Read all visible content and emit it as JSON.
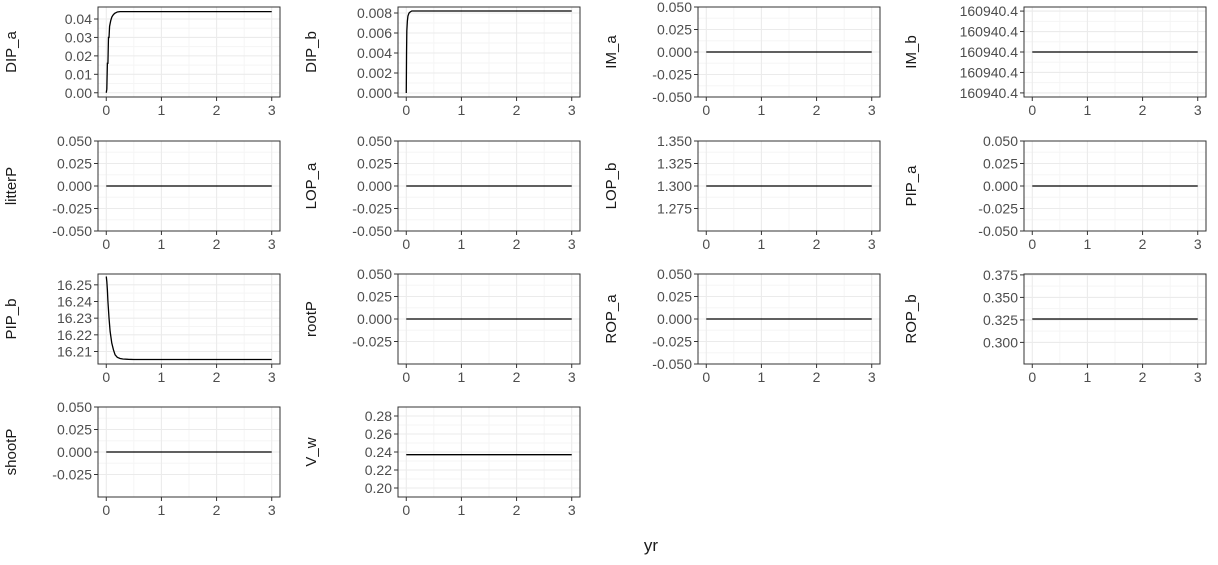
{
  "colors": {
    "background": "#ffffff",
    "panel_border": "#333333",
    "grid_major": "#ebebeb",
    "grid_minor": "#f5f5f5",
    "line": "#000000",
    "text": "#4d4d4d"
  },
  "xlabel": "yr",
  "chart_data": [
    {
      "type": "line",
      "ylabel": "DIP_a",
      "xlim": [
        -0.15,
        3.15
      ],
      "ylim": [
        -0.0023,
        0.0465
      ],
      "xticks": [
        "0",
        "1",
        "2",
        "3"
      ],
      "yticks": [
        0,
        0.01,
        0.02,
        0.03,
        0.04
      ],
      "ytick_labels": [
        "0.00",
        "0.01",
        "0.02",
        "0.03",
        "0.04"
      ],
      "grid": true,
      "x": [
        0,
        0.01,
        0.02,
        0.03,
        0.04,
        0.05,
        0.06,
        0.08,
        0.1,
        0.12,
        0.15,
        0.18,
        0.2,
        0.25,
        0.3,
        0.5,
        1,
        2,
        3
      ],
      "y": [
        0,
        0.002,
        0.016,
        0.016,
        0.03,
        0.03,
        0.036,
        0.039,
        0.041,
        0.042,
        0.043,
        0.0435,
        0.0438,
        0.044,
        0.044,
        0.044,
        0.044,
        0.044,
        0.044
      ]
    },
    {
      "type": "line",
      "ylabel": "DIP_b",
      "xlim": [
        -0.15,
        3.15
      ],
      "ylim": [
        -0.0004,
        0.0086
      ],
      "xticks": [
        "0",
        "1",
        "2",
        "3"
      ],
      "yticks": [
        0,
        0.002,
        0.004,
        0.006,
        0.008
      ],
      "ytick_labels": [
        "0.000",
        "0.002",
        "0.004",
        "0.006",
        "0.008"
      ],
      "grid": true,
      "x": [
        0,
        0.005,
        0.01,
        0.02,
        0.03,
        0.05,
        0.07,
        0.1,
        0.15,
        0.2,
        0.3,
        1,
        2,
        3
      ],
      "y": [
        0,
        0.004,
        0.0062,
        0.0072,
        0.0077,
        0.008,
        0.0081,
        0.0082,
        0.0082,
        0.0082,
        0.0082,
        0.0082,
        0.0082,
        0.0082
      ]
    },
    {
      "type": "line",
      "ylabel": "IM_a",
      "xlim": [
        -0.15,
        3.15
      ],
      "ylim": [
        -0.05,
        0.05
      ],
      "xticks": [
        "0",
        "1",
        "2",
        "3"
      ],
      "yticks": [
        -0.05,
        -0.025,
        0,
        0.025,
        0.05
      ],
      "ytick_labels": [
        "-0.050",
        "-0.025",
        "0.000",
        "0.025",
        "0.050"
      ],
      "grid": true,
      "x": [
        0,
        3
      ],
      "y": [
        0,
        0
      ]
    },
    {
      "type": "line",
      "ylabel": "IM_b",
      "xlim": [
        -0.15,
        3.15
      ],
      "ylim": [
        -0.055,
        0.055
      ],
      "xticks": [
        "0",
        "1",
        "2",
        "3"
      ],
      "yticks": [
        -0.05,
        -0.025,
        0,
        0.025,
        0.05
      ],
      "ytick_labels": [
        "160940.4",
        "160940.4",
        "160940.4",
        "160940.4",
        "160940.4"
      ],
      "grid": true,
      "x": [
        0,
        3
      ],
      "y": [
        0,
        0
      ]
    },
    {
      "type": "line",
      "ylabel": "litterP",
      "xlim": [
        -0.15,
        3.15
      ],
      "ylim": [
        -0.05,
        0.05
      ],
      "xticks": [
        "0",
        "1",
        "2",
        "3"
      ],
      "yticks": [
        -0.05,
        -0.025,
        0,
        0.025,
        0.05
      ],
      "ytick_labels": [
        "-0.050",
        "-0.025",
        "0.000",
        "0.025",
        "0.050"
      ],
      "grid": true,
      "x": [
        0,
        3
      ],
      "y": [
        0,
        0
      ]
    },
    {
      "type": "line",
      "ylabel": "LOP_a",
      "xlim": [
        -0.15,
        3.15
      ],
      "ylim": [
        -0.05,
        0.05
      ],
      "xticks": [
        "0",
        "1",
        "2",
        "3"
      ],
      "yticks": [
        -0.05,
        -0.025,
        0,
        0.025,
        0.05
      ],
      "ytick_labels": [
        "-0.050",
        "-0.025",
        "0.000",
        "0.025",
        "0.050"
      ],
      "grid": true,
      "x": [
        0,
        3
      ],
      "y": [
        0,
        0
      ]
    },
    {
      "type": "line",
      "ylabel": "LOP_b",
      "xlim": [
        -0.15,
        3.15
      ],
      "ylim": [
        1.25,
        1.35
      ],
      "xticks": [
        "0",
        "1",
        "2",
        "3"
      ],
      "yticks": [
        1.275,
        1.3,
        1.325,
        1.35
      ],
      "ytick_labels": [
        "1.275",
        "1.300",
        "1.325",
        "1.350"
      ],
      "grid": true,
      "x": [
        0,
        3
      ],
      "y": [
        1.3,
        1.3
      ]
    },
    {
      "type": "line",
      "ylabel": "PIP_a",
      "xlim": [
        -0.15,
        3.15
      ],
      "ylim": [
        -0.05,
        0.05
      ],
      "xticks": [
        "0",
        "1",
        "2",
        "3"
      ],
      "yticks": [
        -0.05,
        -0.025,
        0,
        0.025,
        0.05
      ],
      "ytick_labels": [
        "-0.050",
        "-0.025",
        "0.000",
        "0.025",
        "0.050"
      ],
      "grid": true,
      "x": [
        0,
        3
      ],
      "y": [
        0,
        0
      ]
    },
    {
      "type": "line",
      "ylabel": "PIP_b",
      "xlim": [
        -0.15,
        3.15
      ],
      "ylim": [
        16.2025,
        16.2565
      ],
      "xticks": [
        "0",
        "1",
        "2",
        "3"
      ],
      "yticks": [
        16.21,
        16.22,
        16.23,
        16.24,
        16.25
      ],
      "ytick_labels": [
        "16.21",
        "16.22",
        "16.23",
        "16.24",
        "16.25"
      ],
      "grid": true,
      "x": [
        0,
        0.01,
        0.02,
        0.03,
        0.05,
        0.07,
        0.1,
        0.13,
        0.16,
        0.2,
        0.25,
        0.3,
        0.4,
        0.5,
        1,
        2,
        3
      ],
      "y": [
        16.255,
        16.252,
        16.247,
        16.24,
        16.23,
        16.222,
        16.215,
        16.211,
        16.208,
        16.2065,
        16.2058,
        16.2055,
        16.2053,
        16.2052,
        16.2052,
        16.2052,
        16.2052
      ]
    },
    {
      "type": "line",
      "ylabel": "rootP",
      "xlim": [
        -0.15,
        3.15
      ],
      "ylim": [
        -0.05,
        0.05
      ],
      "xticks": [
        "0",
        "1",
        "2",
        "3"
      ],
      "yticks": [
        -0.025,
        0,
        0.025,
        0.05
      ],
      "ytick_labels": [
        "-0.025",
        "0.000",
        "0.025",
        "0.050"
      ],
      "grid": true,
      "x": [
        0,
        3
      ],
      "y": [
        0,
        0
      ]
    },
    {
      "type": "line",
      "ylabel": "ROP_a",
      "xlim": [
        -0.15,
        3.15
      ],
      "ylim": [
        -0.05,
        0.05
      ],
      "xticks": [
        "0",
        "1",
        "2",
        "3"
      ],
      "yticks": [
        -0.05,
        -0.025,
        0,
        0.025,
        0.05
      ],
      "ytick_labels": [
        "-0.050",
        "-0.025",
        "0.000",
        "0.025",
        "0.050"
      ],
      "grid": true,
      "x": [
        0,
        3
      ],
      "y": [
        0,
        0
      ]
    },
    {
      "type": "line",
      "ylabel": "ROP_b",
      "xlim": [
        -0.15,
        3.15
      ],
      "ylim": [
        0.276,
        0.376
      ],
      "xticks": [
        "0",
        "1",
        "2",
        "3"
      ],
      "yticks": [
        0.3,
        0.325,
        0.35,
        0.375
      ],
      "ytick_labels": [
        "0.300",
        "0.325",
        "0.350",
        "0.375"
      ],
      "grid": true,
      "x": [
        0,
        3
      ],
      "y": [
        0.326,
        0.326
      ]
    },
    {
      "type": "line",
      "ylabel": "shootP",
      "xlim": [
        -0.15,
        3.15
      ],
      "ylim": [
        -0.05,
        0.05
      ],
      "xticks": [
        "0",
        "1",
        "2",
        "3"
      ],
      "yticks": [
        -0.025,
        0,
        0.025,
        0.05
      ],
      "ytick_labels": [
        "-0.025",
        "0.000",
        "0.025",
        "0.050"
      ],
      "grid": true,
      "x": [
        0,
        3
      ],
      "y": [
        0,
        0
      ]
    },
    {
      "type": "line",
      "ylabel": "V_w",
      "xlim": [
        -0.15,
        3.15
      ],
      "ylim": [
        0.19,
        0.29
      ],
      "xticks": [
        "0",
        "1",
        "2",
        "3"
      ],
      "yticks": [
        0.2,
        0.22,
        0.24,
        0.26,
        0.28
      ],
      "ytick_labels": [
        "0.20",
        "0.22",
        "0.24",
        "0.26",
        "0.28"
      ],
      "grid": true,
      "x": [
        0,
        3
      ],
      "y": [
        0.237,
        0.237
      ]
    }
  ]
}
